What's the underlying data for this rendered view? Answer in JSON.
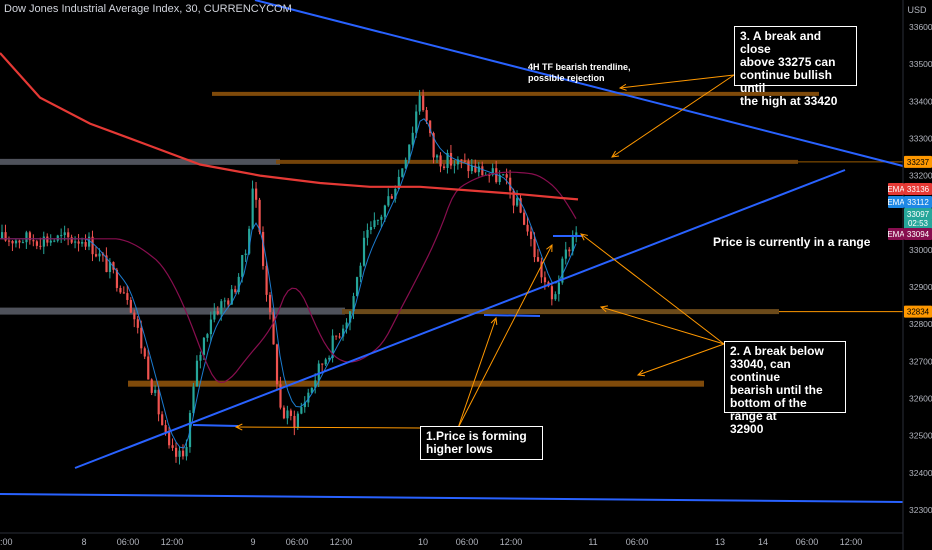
{
  "header": {
    "title": "Dow Jones Industrial Average Index, 30, CURRENCYCOM"
  },
  "axis": {
    "currency": "USD",
    "price_ticks": [
      "33600",
      "33500",
      "33400",
      "33300",
      "33200",
      "33100",
      "33000",
      "32900",
      "32800",
      "32700",
      "32600",
      "32500",
      "32400",
      "32300"
    ],
    "time_ticks": [
      ":00",
      "8",
      "06:00",
      "12:00",
      "9",
      "06:00",
      "12:00",
      "10",
      "06:00",
      "12:00",
      "11",
      "06:00",
      "13",
      "14",
      "06:00",
      "12:00"
    ]
  },
  "price_badges": {
    "level_top": "33237",
    "ema_label": "EMA",
    "ema_slow": "33136",
    "ema_fast": "33112",
    "last_price": "33097",
    "countdown": "02:53",
    "ema_mid": "33094",
    "level_bottom": "32834"
  },
  "annotations": {
    "trendline_note_1": "4H TF bearish trendline,",
    "trendline_note_2": "possible rejection",
    "box3": [
      "3. A break and close",
      "above 33275 can",
      "continue bullish until",
      "the high at 33420"
    ],
    "box2": [
      "2. A break below",
      "33040, can continue",
      "bearish until the",
      "bottom of the range at",
      "32900"
    ],
    "box1": [
      "1.Price is forming",
      "higher lows"
    ],
    "range_note": "Price is currently in a range"
  },
  "colors": {
    "background": "#000000",
    "up_candle": "#26a69a",
    "down_candle": "#ef5350",
    "trendline": "#2962ff",
    "zone": "#7f4a0a",
    "arrow": "#ff9800",
    "ema_slow": "#e53935",
    "ema_fast": "#1e88e5",
    "ema_mid": "#880e4f"
  },
  "chart_data": {
    "type": "candlestick",
    "title": "Dow Jones Industrial Average Index, 30, CURRENCYCOM",
    "ylabel": "USD",
    "ylim": [
      32260,
      33660
    ],
    "grid": false,
    "close_path": [
      {
        "x": "7 12:00",
        "close": 33030
      },
      {
        "x": "7 18:00",
        "close": 32880
      },
      {
        "x": "8 00:00",
        "close": 32450
      },
      {
        "x": "8 02:00",
        "close": 32440
      },
      {
        "x": "8 04:00",
        "close": 32700
      },
      {
        "x": "8 06:00",
        "close": 32830
      },
      {
        "x": "8 09:00",
        "close": 32880
      },
      {
        "x": "8 11:00",
        "close": 33000
      },
      {
        "x": "8 12:00",
        "close": 33190
      },
      {
        "x": "8 14:00",
        "close": 32880
      },
      {
        "x": "8 16:00",
        "close": 32560
      },
      {
        "x": "8 18:00",
        "close": 32540
      },
      {
        "x": "8 22:00",
        "close": 32700
      },
      {
        "x": "9 02:00",
        "close": 32840
      },
      {
        "x": "9 04:00",
        "close": 33020
      },
      {
        "x": "9 06:00",
        "close": 33080
      },
      {
        "x": "9 09:00",
        "close": 33200
      },
      {
        "x": "9 11:00",
        "close": 33330
      },
      {
        "x": "9 12:00",
        "close": 33430
      },
      {
        "x": "9 14:00",
        "close": 33250
      },
      {
        "x": "9 18:00",
        "close": 33230
      },
      {
        "x": "10 00:00",
        "close": 33190
      },
      {
        "x": "10 03:00",
        "close": 33080
      },
      {
        "x": "10 05:00",
        "close": 32960
      },
      {
        "x": "10 07:00",
        "close": 32860
      },
      {
        "x": "10 09:00",
        "close": 32990
      },
      {
        "x": "10 12:00",
        "close": 33130
      },
      {
        "x": "10 14:00",
        "close": 33200
      },
      {
        "x": "10 15:30",
        "close": 33250
      },
      {
        "x": "10 17:00",
        "close": 33097
      }
    ],
    "horizontal_levels": [
      33420,
      33237,
      32834,
      32640
    ],
    "ema": [
      {
        "name": "EMA",
        "value": 33136
      },
      {
        "name": "EMA",
        "value": 33112
      },
      {
        "name": "EMA",
        "value": 33094
      }
    ]
  }
}
